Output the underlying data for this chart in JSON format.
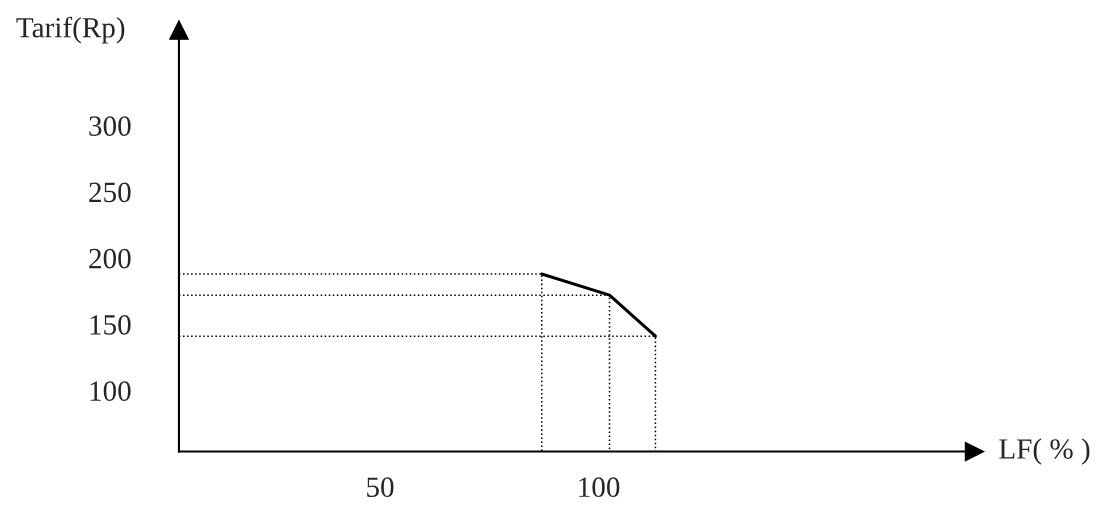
{
  "chart_data": {
    "type": "line",
    "xlabel": "LF( % )",
    "ylabel": "Tarif(Rp)",
    "xlim": [
      4,
      186
    ],
    "xticks": [
      50,
      100
    ],
    "ylim": [
      54,
      372
    ],
    "yticks": [
      100,
      150,
      200,
      250,
      300
    ],
    "grid": false,
    "line_style": "solid",
    "series": [
      {
        "color": "#000000",
        "x": [
          87,
          102.5,
          113
        ],
        "values": [
          188,
          172,
          141
        ]
      },
      {
        "color": "#000000",
        "line_style": "dotted",
        "x": [
          4,
          87,
          87
        ],
        "values": [
          188,
          188,
          54
        ]
      },
      {
        "color": "#000000",
        "line_style": "dotted",
        "x": [
          4,
          102.5,
          102.5
        ],
        "values": [
          172,
          172,
          54
        ]
      },
      {
        "color": "#000000",
        "line_style": "dotted",
        "x": [
          4,
          113,
          113
        ],
        "values": [
          141,
          141,
          54
        ]
      }
    ]
  }
}
